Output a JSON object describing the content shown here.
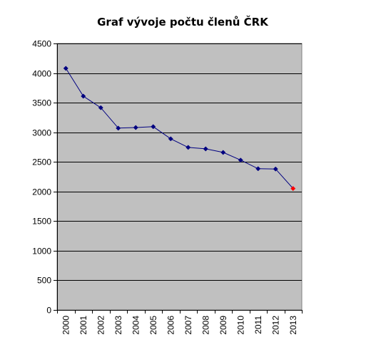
{
  "chart_data": {
    "type": "line",
    "title": "Graf vývoje počtu členů ČRK",
    "xlabel": "",
    "ylabel": "",
    "x": [
      "2000",
      "2001",
      "2002",
      "2003",
      "2004",
      "2005",
      "2006",
      "2007",
      "2008",
      "2009",
      "2010",
      "2011",
      "2012",
      "2013"
    ],
    "series": [
      {
        "values": [
          4080,
          3610,
          3415,
          3070,
          3080,
          3095,
          2890,
          2745,
          2720,
          2660,
          2530,
          2385,
          2380,
          2050
        ],
        "color": "#000080"
      }
    ],
    "highlighted_point": {
      "x": "2013",
      "color": "#ff0000"
    },
    "ylim": [
      0,
      4500
    ],
    "yticks": [
      0,
      500,
      1000,
      1500,
      2000,
      2500,
      3000,
      3500,
      4000,
      4500
    ],
    "grid": true,
    "legend": "none",
    "plot_background": "#c0c0c0",
    "gridline_color": "#000000"
  }
}
